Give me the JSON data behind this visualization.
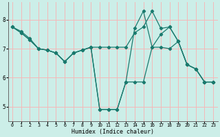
{
  "xlabel": "Humidex (Indice chaleur)",
  "background_color": "#cceee8",
  "line_color": "#1a7a6e",
  "grid_color": "#f5b8b8",
  "xlim": [
    -0.5,
    23.5
  ],
  "ylim": [
    4.5,
    8.6
  ],
  "yticks": [
    5,
    6,
    7,
    8
  ],
  "xticks": [
    0,
    1,
    2,
    3,
    4,
    5,
    6,
    7,
    8,
    9,
    10,
    11,
    12,
    13,
    14,
    15,
    16,
    17,
    18,
    19,
    20,
    21,
    22,
    23
  ],
  "line1_x": [
    0,
    1,
    2,
    3,
    4,
    5,
    6,
    7,
    8,
    9,
    10,
    11,
    12,
    13,
    14,
    15,
    16,
    17,
    18,
    19,
    20,
    21,
    22,
    23
  ],
  "line1_y": [
    7.75,
    7.6,
    7.35,
    7.0,
    6.95,
    6.85,
    6.55,
    6.85,
    6.95,
    7.05,
    7.05,
    7.05,
    7.05,
    7.05,
    7.55,
    7.75,
    8.3,
    7.7,
    7.75,
    7.25,
    6.45,
    6.3,
    5.85,
    5.85
  ],
  "line2_x": [
    0,
    1,
    2,
    3,
    4,
    5,
    6,
    7,
    8,
    9,
    10,
    11,
    12,
    13,
    14,
    15,
    16,
    17,
    18,
    19,
    20,
    21,
    22,
    23
  ],
  "line2_y": [
    7.75,
    7.55,
    7.3,
    7.0,
    6.95,
    6.85,
    6.55,
    6.85,
    6.95,
    7.05,
    4.9,
    4.9,
    4.9,
    5.85,
    7.7,
    8.3,
    7.05,
    7.5,
    7.75,
    7.25,
    6.45,
    6.3,
    5.85,
    5.85
  ],
  "line3_x": [
    0,
    1,
    2,
    3,
    4,
    5,
    6,
    7,
    8,
    9,
    10,
    11,
    12,
    13,
    14,
    15,
    16,
    17,
    18,
    19,
    20,
    21,
    22,
    23
  ],
  "line3_y": [
    7.75,
    7.55,
    7.3,
    7.0,
    6.95,
    6.85,
    6.55,
    6.85,
    6.95,
    7.05,
    4.9,
    4.9,
    4.9,
    5.85,
    5.85,
    5.85,
    7.05,
    7.05,
    7.0,
    7.25,
    6.45,
    6.3,
    5.85,
    5.85
  ]
}
